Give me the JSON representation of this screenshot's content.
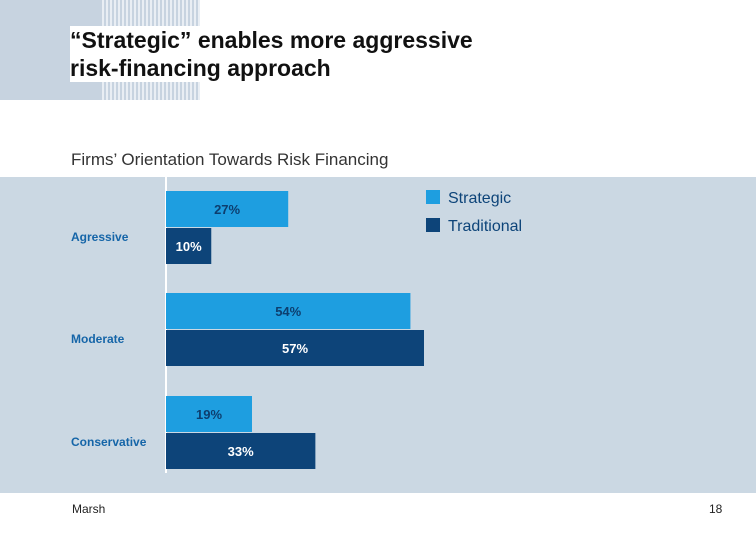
{
  "header": {
    "title_line1": "“Strategic” enables more aggressive",
    "title_line2": "risk-financing approach"
  },
  "chart_data": {
    "type": "bar",
    "orientation": "horizontal",
    "title": "Firms’ Orientation Towards Risk Financing",
    "categories": [
      "Agressive",
      "Moderate",
      "Conservative"
    ],
    "series": [
      {
        "name": "Strategic",
        "values": [
          27,
          54,
          19
        ],
        "color": "#1e9ee0"
      },
      {
        "name": "Traditional",
        "values": [
          10,
          57,
          33
        ],
        "color": "#0d4479"
      }
    ],
    "value_suffix": "%",
    "xlim": [
      0,
      100
    ],
    "legend_position": "top-right",
    "grid": false
  },
  "footer": {
    "source": "Marsh",
    "page_number": "18"
  },
  "colors": {
    "panel_background": "#cbd8e3",
    "label_color": "#1565a8",
    "strategic": "#1e9ee0",
    "traditional": "#0d4479"
  }
}
